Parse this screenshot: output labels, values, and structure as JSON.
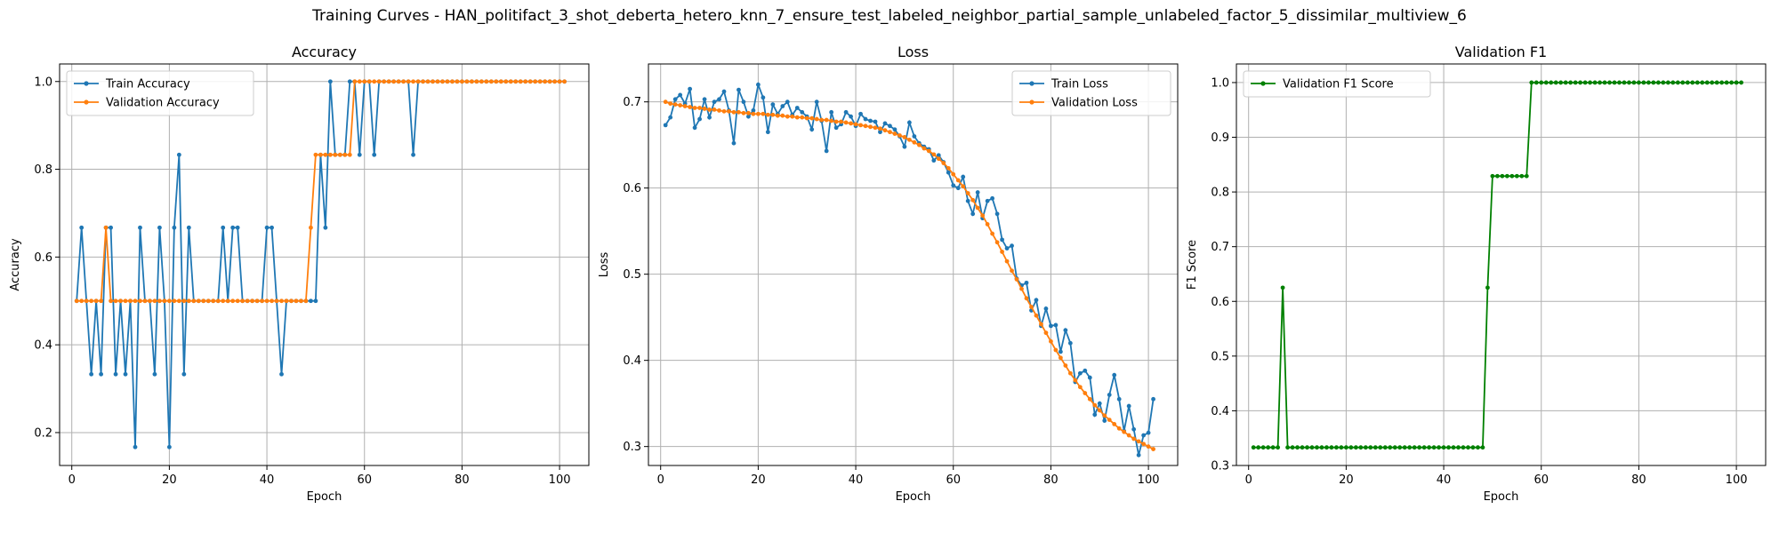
{
  "figure": {
    "title": "Training Curves - HAN_politifact_3_shot_deberta_hetero_knn_7_ensure_test_labeled_neighbor_partial_sample_unlabeled_factor_5_dissimilar_multiview_6"
  },
  "colors": {
    "blue": "#1f77b4",
    "orange": "#ff7f0e",
    "green": "#008000",
    "grid": "#b0b0b0"
  },
  "chart_data": [
    {
      "type": "line",
      "title": "Accuracy",
      "xlabel": "Epoch",
      "ylabel": "Accuracy",
      "xlim": [
        -2.5,
        106
      ],
      "ylim": [
        0.125,
        1.04
      ],
      "xticks": [
        0,
        20,
        40,
        60,
        80,
        100
      ],
      "yticks": [
        0.2,
        0.4,
        0.6,
        0.8,
        1.0
      ],
      "ytick_labels": [
        "0.2",
        "0.4",
        "0.6",
        "0.8",
        "1.0"
      ],
      "grid": true,
      "legend": "upper left",
      "x": [
        1,
        2,
        3,
        4,
        5,
        6,
        7,
        8,
        9,
        10,
        11,
        12,
        13,
        14,
        15,
        16,
        17,
        18,
        19,
        20,
        21,
        22,
        23,
        24,
        25,
        26,
        27,
        28,
        29,
        30,
        31,
        32,
        33,
        34,
        35,
        36,
        37,
        38,
        39,
        40,
        41,
        42,
        43,
        44,
        45,
        46,
        47,
        48,
        49,
        50,
        51,
        52,
        53,
        54,
        55,
        56,
        57,
        58,
        59,
        60,
        61,
        62,
        63,
        64,
        65,
        66,
        67,
        68,
        69,
        70,
        71,
        72,
        73,
        74,
        75,
        76,
        77,
        78,
        79,
        80,
        81,
        82,
        83,
        84,
        85,
        86,
        87,
        88,
        89,
        90,
        91,
        92,
        93,
        94,
        95,
        96,
        97,
        98,
        99,
        100,
        101
      ],
      "series": [
        {
          "name": "Train Accuracy",
          "color": "#1f77b4",
          "values": [
            0.5,
            0.667,
            0.5,
            0.333,
            0.5,
            0.333,
            0.667,
            0.667,
            0.333,
            0.5,
            0.333,
            0.5,
            0.167,
            0.667,
            0.5,
            0.5,
            0.333,
            0.667,
            0.5,
            0.167,
            0.667,
            0.833,
            0.333,
            0.667,
            0.5,
            0.5,
            0.5,
            0.5,
            0.5,
            0.5,
            0.667,
            0.5,
            0.667,
            0.667,
            0.5,
            0.5,
            0.5,
            0.5,
            0.5,
            0.667,
            0.667,
            0.5,
            0.333,
            0.5,
            0.5,
            0.5,
            0.5,
            0.5,
            0.5,
            0.5,
            0.833,
            0.667,
            1.0,
            0.833,
            0.833,
            0.833,
            1.0,
            1.0,
            0.833,
            1.0,
            1.0,
            0.833,
            1.0,
            1.0,
            1.0,
            1.0,
            1.0,
            1.0,
            1.0,
            0.833,
            1.0,
            1.0,
            1.0,
            1.0,
            1.0,
            1.0,
            1.0,
            1.0,
            1.0,
            1.0,
            1.0,
            1.0,
            1.0,
            1.0,
            1.0,
            1.0,
            1.0,
            1.0,
            1.0,
            1.0,
            1.0,
            1.0,
            1.0,
            1.0,
            1.0,
            1.0,
            1.0,
            1.0,
            1.0,
            1.0,
            1.0
          ]
        },
        {
          "name": "Validation Accuracy",
          "color": "#ff7f0e",
          "values": [
            0.5,
            0.5,
            0.5,
            0.5,
            0.5,
            0.5,
            0.667,
            0.5,
            0.5,
            0.5,
            0.5,
            0.5,
            0.5,
            0.5,
            0.5,
            0.5,
            0.5,
            0.5,
            0.5,
            0.5,
            0.5,
            0.5,
            0.5,
            0.5,
            0.5,
            0.5,
            0.5,
            0.5,
            0.5,
            0.5,
            0.5,
            0.5,
            0.5,
            0.5,
            0.5,
            0.5,
            0.5,
            0.5,
            0.5,
            0.5,
            0.5,
            0.5,
            0.5,
            0.5,
            0.5,
            0.5,
            0.5,
            0.5,
            0.667,
            0.833,
            0.833,
            0.833,
            0.833,
            0.833,
            0.833,
            0.833,
            0.833,
            1.0,
            1.0,
            1.0,
            1.0,
            1.0,
            1.0,
            1.0,
            1.0,
            1.0,
            1.0,
            1.0,
            1.0,
            1.0,
            1.0,
            1.0,
            1.0,
            1.0,
            1.0,
            1.0,
            1.0,
            1.0,
            1.0,
            1.0,
            1.0,
            1.0,
            1.0,
            1.0,
            1.0,
            1.0,
            1.0,
            1.0,
            1.0,
            1.0,
            1.0,
            1.0,
            1.0,
            1.0,
            1.0,
            1.0,
            1.0,
            1.0,
            1.0,
            1.0,
            1.0
          ]
        }
      ]
    },
    {
      "type": "line",
      "title": "Loss",
      "xlabel": "Epoch",
      "ylabel": "Loss",
      "xlim": [
        -2.5,
        106
      ],
      "ylim": [
        0.278,
        0.744
      ],
      "xticks": [
        0,
        20,
        40,
        60,
        80,
        100
      ],
      "yticks": [
        0.3,
        0.4,
        0.5,
        0.6,
        0.7
      ],
      "ytick_labels": [
        "0.3",
        "0.4",
        "0.5",
        "0.6",
        "0.7"
      ],
      "grid": true,
      "legend": "upper right",
      "x": [
        1,
        2,
        3,
        4,
        5,
        6,
        7,
        8,
        9,
        10,
        11,
        12,
        13,
        14,
        15,
        16,
        17,
        18,
        19,
        20,
        21,
        22,
        23,
        24,
        25,
        26,
        27,
        28,
        29,
        30,
        31,
        32,
        33,
        34,
        35,
        36,
        37,
        38,
        39,
        40,
        41,
        42,
        43,
        44,
        45,
        46,
        47,
        48,
        49,
        50,
        51,
        52,
        53,
        54,
        55,
        56,
        57,
        58,
        59,
        60,
        61,
        62,
        63,
        64,
        65,
        66,
        67,
        68,
        69,
        70,
        71,
        72,
        73,
        74,
        75,
        76,
        77,
        78,
        79,
        80,
        81,
        82,
        83,
        84,
        85,
        86,
        87,
        88,
        89,
        90,
        91,
        92,
        93,
        94,
        95,
        96,
        97,
        98,
        99,
        100,
        101
      ],
      "series": [
        {
          "name": "Train Loss",
          "color": "#1f77b4",
          "values": [
            0.673,
            0.682,
            0.703,
            0.708,
            0.698,
            0.715,
            0.67,
            0.68,
            0.703,
            0.682,
            0.7,
            0.703,
            0.712,
            0.69,
            0.652,
            0.714,
            0.7,
            0.683,
            0.69,
            0.72,
            0.705,
            0.665,
            0.697,
            0.686,
            0.695,
            0.7,
            0.685,
            0.693,
            0.688,
            0.683,
            0.668,
            0.7,
            0.678,
            0.643,
            0.688,
            0.67,
            0.674,
            0.688,
            0.683,
            0.672,
            0.686,
            0.68,
            0.678,
            0.677,
            0.665,
            0.675,
            0.672,
            0.668,
            0.66,
            0.648,
            0.676,
            0.66,
            0.652,
            0.648,
            0.645,
            0.632,
            0.638,
            0.63,
            0.618,
            0.603,
            0.6,
            0.613,
            0.585,
            0.57,
            0.595,
            0.565,
            0.585,
            0.588,
            0.57,
            0.54,
            0.53,
            0.533,
            0.495,
            0.487,
            0.49,
            0.458,
            0.47,
            0.44,
            0.46,
            0.44,
            0.441,
            0.41,
            0.435,
            0.42,
            0.375,
            0.385,
            0.388,
            0.38,
            0.337,
            0.35,
            0.33,
            0.36,
            0.383,
            0.355,
            0.318,
            0.347,
            0.32,
            0.29,
            0.313,
            0.316,
            0.355
          ]
        },
        {
          "name": "Validation Loss",
          "color": "#ff7f0e",
          "values": [
            0.7,
            0.698,
            0.697,
            0.696,
            0.695,
            0.694,
            0.693,
            0.693,
            0.692,
            0.691,
            0.691,
            0.69,
            0.689,
            0.689,
            0.688,
            0.688,
            0.687,
            0.687,
            0.686,
            0.686,
            0.686,
            0.685,
            0.685,
            0.684,
            0.684,
            0.683,
            0.683,
            0.682,
            0.682,
            0.681,
            0.681,
            0.68,
            0.679,
            0.679,
            0.678,
            0.677,
            0.677,
            0.676,
            0.675,
            0.674,
            0.673,
            0.672,
            0.671,
            0.67,
            0.669,
            0.667,
            0.665,
            0.663,
            0.661,
            0.659,
            0.656,
            0.653,
            0.65,
            0.646,
            0.643,
            0.639,
            0.634,
            0.629,
            0.623,
            0.616,
            0.609,
            0.602,
            0.594,
            0.586,
            0.577,
            0.568,
            0.558,
            0.547,
            0.537,
            0.526,
            0.515,
            0.504,
            0.494,
            0.483,
            0.472,
            0.462,
            0.452,
            0.442,
            0.432,
            0.422,
            0.412,
            0.403,
            0.394,
            0.385,
            0.377,
            0.369,
            0.362,
            0.355,
            0.348,
            0.342,
            0.336,
            0.331,
            0.326,
            0.321,
            0.317,
            0.313,
            0.309,
            0.306,
            0.303,
            0.3,
            0.297
          ]
        }
      ]
    },
    {
      "type": "line",
      "title": "Validation F1",
      "xlabel": "Epoch",
      "ylabel": "F1 Score",
      "xlim": [
        -2.5,
        106
      ],
      "ylim": [
        0.3,
        1.034
      ],
      "xticks": [
        0,
        20,
        40,
        60,
        80,
        100
      ],
      "yticks": [
        0.3,
        0.4,
        0.5,
        0.6,
        0.7,
        0.8,
        0.9,
        1.0
      ],
      "ytick_labels": [
        "0.3",
        "0.4",
        "0.5",
        "0.6",
        "0.7",
        "0.8",
        "0.9",
        "1.0"
      ],
      "grid": true,
      "legend": "upper left",
      "x": [
        1,
        2,
        3,
        4,
        5,
        6,
        7,
        8,
        9,
        10,
        11,
        12,
        13,
        14,
        15,
        16,
        17,
        18,
        19,
        20,
        21,
        22,
        23,
        24,
        25,
        26,
        27,
        28,
        29,
        30,
        31,
        32,
        33,
        34,
        35,
        36,
        37,
        38,
        39,
        40,
        41,
        42,
        43,
        44,
        45,
        46,
        47,
        48,
        49,
        50,
        51,
        52,
        53,
        54,
        55,
        56,
        57,
        58,
        59,
        60,
        61,
        62,
        63,
        64,
        65,
        66,
        67,
        68,
        69,
        70,
        71,
        72,
        73,
        74,
        75,
        76,
        77,
        78,
        79,
        80,
        81,
        82,
        83,
        84,
        85,
        86,
        87,
        88,
        89,
        90,
        91,
        92,
        93,
        94,
        95,
        96,
        97,
        98,
        99,
        100,
        101
      ],
      "series": [
        {
          "name": "Validation F1 Score",
          "color": "#008000",
          "values": [
            0.333,
            0.333,
            0.333,
            0.333,
            0.333,
            0.333,
            0.625,
            0.333,
            0.333,
            0.333,
            0.333,
            0.333,
            0.333,
            0.333,
            0.333,
            0.333,
            0.333,
            0.333,
            0.333,
            0.333,
            0.333,
            0.333,
            0.333,
            0.333,
            0.333,
            0.333,
            0.333,
            0.333,
            0.333,
            0.333,
            0.333,
            0.333,
            0.333,
            0.333,
            0.333,
            0.333,
            0.333,
            0.333,
            0.333,
            0.333,
            0.333,
            0.333,
            0.333,
            0.333,
            0.333,
            0.333,
            0.333,
            0.333,
            0.625,
            0.829,
            0.829,
            0.829,
            0.829,
            0.829,
            0.829,
            0.829,
            0.829,
            1.0,
            1.0,
            1.0,
            1.0,
            1.0,
            1.0,
            1.0,
            1.0,
            1.0,
            1.0,
            1.0,
            1.0,
            1.0,
            1.0,
            1.0,
            1.0,
            1.0,
            1.0,
            1.0,
            1.0,
            1.0,
            1.0,
            1.0,
            1.0,
            1.0,
            1.0,
            1.0,
            1.0,
            1.0,
            1.0,
            1.0,
            1.0,
            1.0,
            1.0,
            1.0,
            1.0,
            1.0,
            1.0,
            1.0,
            1.0,
            1.0,
            1.0,
            1.0,
            1.0
          ]
        }
      ]
    }
  ]
}
